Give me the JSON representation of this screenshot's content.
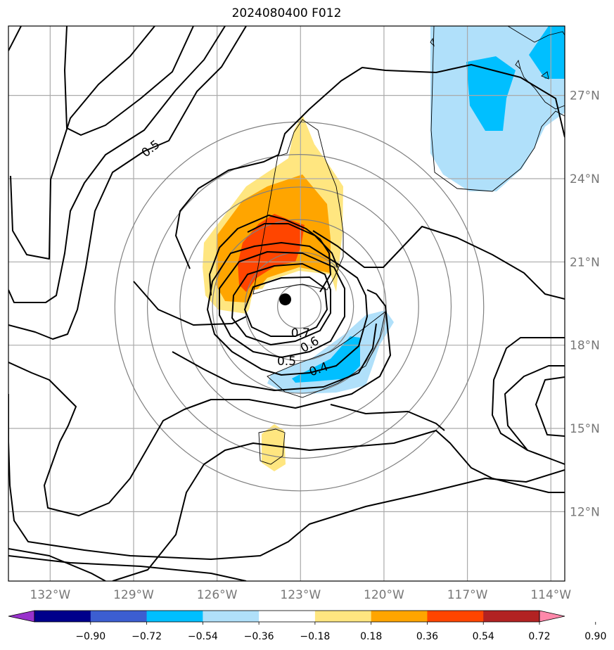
{
  "title": "2024080400 F012",
  "map": {
    "lon_range": [
      -133.5,
      -113.5
    ],
    "lat_range": [
      9.5,
      29.5
    ],
    "lon_ticks": [
      {
        "lon": -132,
        "label": "132°W"
      },
      {
        "lon": -129,
        "label": "129°W"
      },
      {
        "lon": -126,
        "label": "126°W"
      },
      {
        "lon": -123,
        "label": "123°W"
      },
      {
        "lon": -120,
        "label": "120°W"
      },
      {
        "lon": -117,
        "label": "117°W"
      },
      {
        "lon": -114,
        "label": "114°W"
      }
    ],
    "lat_ticks": [
      {
        "lat": 12,
        "label": "12°N"
      },
      {
        "lat": 15,
        "label": "15°N"
      },
      {
        "lat": 18,
        "label": "18°N"
      },
      {
        "lat": 21,
        "label": "21°N"
      },
      {
        "lat": 24,
        "label": "24°N"
      },
      {
        "lat": 27,
        "label": "27°N"
      }
    ],
    "storm_center": {
      "lon": -123.55,
      "lat": 19.65
    },
    "range_rings_deg": [
      1,
      2.5,
      4,
      5.5,
      7,
      8.5
    ],
    "contour_labels": [
      {
        "text": "0.5",
        "lon": -128.3,
        "lat": 24.97
      },
      {
        "text": "0.7",
        "lon": -123.0,
        "lat": 18.3
      },
      {
        "text": "0.6",
        "lon": -122.6,
        "lat": 17.9
      },
      {
        "text": "0.5",
        "lon": -123.5,
        "lat": 17.28
      },
      {
        "text": "0.4",
        "lon": -122.3,
        "lat": 17.0
      }
    ]
  },
  "colorbar": {
    "levels": [
      "−0.90",
      "−0.72",
      "−0.54",
      "−0.36",
      "−0.18",
      "0.18",
      "0.36",
      "0.54",
      "0.72",
      "0.90"
    ],
    "colors": [
      "#9932cc",
      "#00008b",
      "#3c5ed1",
      "#00bfff",
      "#b0e0fa",
      "#ffffff",
      "#ffe680",
      "#ffa500",
      "#ff4500",
      "#b22222",
      "#ff88aa"
    ]
  }
}
